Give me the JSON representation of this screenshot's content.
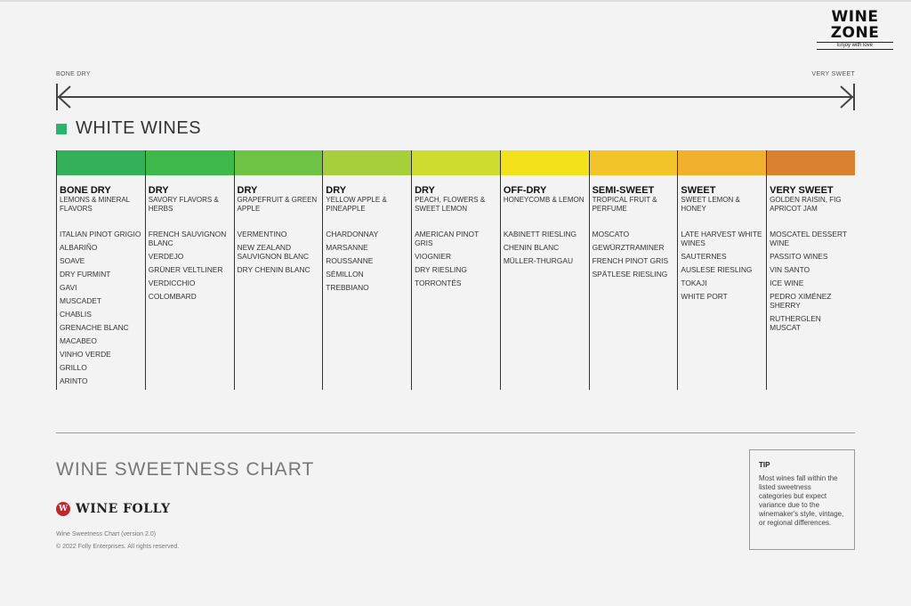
{
  "brand": {
    "title": "WINE ZONE",
    "tagline": "Enjoy with love"
  },
  "scale": {
    "left_label": "BONE DRY",
    "right_label": "VERY SWEET"
  },
  "section": {
    "title": "WHITE WINES",
    "swatch_color": "#2db36b"
  },
  "columns": [
    {
      "title": "BONE DRY",
      "subtitle": "LEMONS & MINERAL FLAVORS",
      "color": "#34b05a",
      "wines": [
        "ITALIAN PINOT GRIGIO",
        "ALBARIÑO",
        "SOAVE",
        "DRY FURMINT",
        "GAVI",
        "MUSCADET",
        "CHABLIS",
        "GRENACHE BLANC",
        "MACABEO",
        "VINHO VERDE",
        "GRILLO",
        "ARINTO"
      ]
    },
    {
      "title": "DRY",
      "subtitle": "SAVORY FLAVORS & HERBS",
      "color": "#3fb84a",
      "wines": [
        "FRENCH SAUVIGNON BLANC",
        "VERDEJO",
        "GRÜNER VELTLINER",
        "VERDICCHIO",
        "COLOMBARD"
      ]
    },
    {
      "title": "DRY",
      "subtitle": "GRAPEFRUIT & GREEN APPLE",
      "color": "#6ec244",
      "wines": [
        "VERMENTINO",
        "NEW ZEALAND SAUVIGNON BLANC",
        "DRY CHENIN BLANC"
      ]
    },
    {
      "title": "DRY",
      "subtitle": "YELLOW APPLE & PINEAPPLE",
      "color": "#a6cf3b",
      "wines": [
        "CHARDONNAY",
        "MARSANNE",
        "ROUSSANNE",
        "SÉMILLON",
        "TREBBIANO"
      ]
    },
    {
      "title": "DRY",
      "subtitle": "PEACH, FLOWERS & SWEET LEMON",
      "color": "#cddc2e",
      "wines": [
        "AMERICAN PINOT GRIS",
        "VIOGNIER",
        "DRY RIESLING",
        "TORRONTÉS"
      ]
    },
    {
      "title": "OFF-DRY",
      "subtitle": "HONEYCOMB & LEMON",
      "color": "#f3e11c",
      "wines": [
        "KABINETT RIESLING",
        "CHENIN BLANC",
        "MÜLLER-THURGAU"
      ]
    },
    {
      "title": "SEMI-SWEET",
      "subtitle": "TROPICAL FRUIT & PERFUME",
      "color": "#f3c42a",
      "wines": [
        "MOSCATO",
        "GEWÜRZTRAMINER",
        "FRENCH PINOT GRIS",
        "SPÄTLESE RIESLING"
      ]
    },
    {
      "title": "SWEET",
      "subtitle": "SWEET LEMON & HONEY",
      "color": "#f0b02e",
      "wines": [
        "LATE HARVEST WHITE WINES",
        "SAUTERNES",
        "AUSLESE RIESLING",
        "TOKAJI",
        "WHITE PORT"
      ]
    },
    {
      "title": "VERY SWEET",
      "subtitle": "GOLDEN RAISIN, FIG APRICOT JAM",
      "color": "#d98031",
      "wines": [
        "MOSCATEL DESSERT WINE",
        "PASSITO WINES",
        "VIN SANTO",
        "ICE WINE",
        "PEDRO XIMÉNEZ SHERRY",
        "RUTHERGLEN MUSCAT"
      ]
    }
  ],
  "footer": {
    "chart_title": "WINE SWEETNESS CHART",
    "logo_text": "WINE FOLLY",
    "logo_mark": "W",
    "version": "Wine Sweetness Chart (version 2.0)",
    "copyright": "© 2022 Folly Enterprises. All rights reserved."
  },
  "tip": {
    "label": "TIP",
    "text": "Most wines fall within the listed sweetness categories but expect variance due to the winemaker's style, vintage, or regional differences."
  }
}
